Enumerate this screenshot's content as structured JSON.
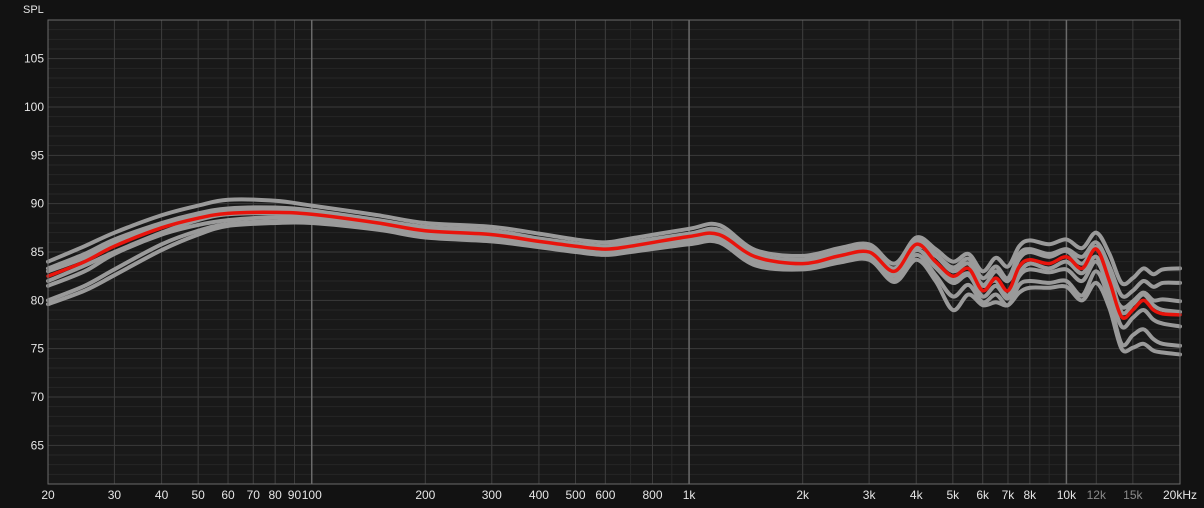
{
  "chart_data": {
    "type": "line",
    "ylabel": "SPL",
    "xunit": "Hz",
    "xscale": "log",
    "xlim": [
      20,
      20000
    ],
    "ylim": [
      61,
      109
    ],
    "grid": true,
    "yticks": [
      65,
      70,
      75,
      80,
      85,
      90,
      95,
      100,
      105
    ],
    "xticks": [
      {
        "v": 20,
        "label": "20",
        "dim": false
      },
      {
        "v": 30,
        "label": "30",
        "dim": false
      },
      {
        "v": 40,
        "label": "40",
        "dim": false
      },
      {
        "v": 50,
        "label": "50",
        "dim": false
      },
      {
        "v": 60,
        "label": "60",
        "dim": false
      },
      {
        "v": 70,
        "label": "70",
        "dim": false
      },
      {
        "v": 80,
        "label": "80",
        "dim": false
      },
      {
        "v": 90,
        "label": "90",
        "dim": false
      },
      {
        "v": 100,
        "label": "100",
        "dim": false
      },
      {
        "v": 200,
        "label": "200",
        "dim": false
      },
      {
        "v": 300,
        "label": "300",
        "dim": false
      },
      {
        "v": 400,
        "label": "400",
        "dim": false
      },
      {
        "v": 500,
        "label": "500",
        "dim": false
      },
      {
        "v": 600,
        "label": "600",
        "dim": false
      },
      {
        "v": 800,
        "label": "800",
        "dim": false
      },
      {
        "v": 1000,
        "label": "1k",
        "dim": false
      },
      {
        "v": 2000,
        "label": "2k",
        "dim": false
      },
      {
        "v": 3000,
        "label": "3k",
        "dim": false
      },
      {
        "v": 4000,
        "label": "4k",
        "dim": false
      },
      {
        "v": 5000,
        "label": "5k",
        "dim": false
      },
      {
        "v": 6000,
        "label": "6k",
        "dim": false
      },
      {
        "v": 7000,
        "label": "7k",
        "dim": false
      },
      {
        "v": 8000,
        "label": "8k",
        "dim": false
      },
      {
        "v": 10000,
        "label": "10k",
        "dim": false
      },
      {
        "v": 12000,
        "label": "12k",
        "dim": true
      },
      {
        "v": 15000,
        "label": "15k",
        "dim": true
      },
      {
        "v": 20000,
        "label": "20kHz",
        "dim": false
      }
    ],
    "x": [
      20,
      25,
      30,
      40,
      50,
      60,
      80,
      100,
      150,
      200,
      300,
      400,
      500,
      600,
      700,
      1000,
      1200,
      1500,
      2000,
      2500,
      3000,
      3500,
      4000,
      4500,
      5000,
      5500,
      6000,
      6500,
      7000,
      7500,
      8000,
      9000,
      10000,
      11000,
      12000,
      13000,
      14000,
      15000,
      16000,
      17000,
      18000,
      20000
    ],
    "series": [
      {
        "color": "#e8140c",
        "y": [
          82.5,
          84.0,
          85.6,
          87.5,
          88.5,
          89.0,
          89.1,
          88.9,
          88.0,
          87.2,
          86.8,
          86.1,
          85.6,
          85.3,
          85.6,
          86.6,
          86.8,
          84.5,
          83.8,
          84.6,
          85.0,
          83.0,
          85.8,
          84.0,
          82.5,
          83.3,
          81.0,
          82.3,
          81.0,
          83.5,
          84.2,
          83.8,
          84.5,
          83.3,
          85.3,
          82.0,
          78.3,
          79.0,
          80.0,
          79.0,
          78.6,
          78.5
        ]
      },
      {
        "color": "#9a9a9a",
        "y": [
          84.0,
          85.6,
          87.0,
          88.8,
          89.8,
          90.4,
          90.3,
          89.8,
          88.8,
          88.0,
          87.6,
          86.9,
          86.3,
          86.0,
          86.4,
          87.4,
          87.8,
          85.2,
          84.6,
          85.4,
          85.8,
          83.8,
          86.5,
          85.3,
          84.0,
          84.8,
          83.0,
          84.4,
          83.5,
          85.6,
          86.2,
          85.8,
          86.3,
          85.4,
          87.0,
          84.8,
          81.8,
          82.3,
          83.3,
          82.7,
          83.2,
          83.3
        ]
      },
      {
        "color": "#9a9a9a",
        "y": [
          83.3,
          84.8,
          86.3,
          88.0,
          89.0,
          89.5,
          89.6,
          89.3,
          88.3,
          87.6,
          87.2,
          86.4,
          85.9,
          85.6,
          86.0,
          86.9,
          87.3,
          84.8,
          84.2,
          85.0,
          85.4,
          83.3,
          86.2,
          84.8,
          83.4,
          84.3,
          82.3,
          83.5,
          82.3,
          84.8,
          85.3,
          84.8,
          85.3,
          84.5,
          86.0,
          83.5,
          80.5,
          81.0,
          82.0,
          81.4,
          81.8,
          81.8
        ]
      },
      {
        "color": "#9a9a9a",
        "y": [
          81.5,
          83.0,
          84.8,
          86.8,
          87.8,
          88.3,
          88.6,
          88.5,
          87.7,
          87.0,
          86.5,
          85.9,
          85.4,
          85.1,
          85.4,
          86.3,
          86.5,
          84.2,
          83.6,
          84.3,
          84.7,
          82.6,
          85.2,
          83.4,
          81.8,
          82.6,
          80.4,
          81.5,
          80.2,
          82.5,
          83.2,
          82.9,
          83.2,
          82.0,
          84.0,
          81.0,
          77.3,
          78.2,
          79.0,
          78.0,
          77.6,
          77.3
        ]
      },
      {
        "color": "#9a9a9a",
        "y": [
          80.0,
          81.5,
          83.2,
          85.8,
          87.2,
          87.9,
          88.2,
          88.2,
          87.4,
          86.7,
          86.3,
          85.7,
          85.2,
          84.9,
          85.2,
          86.0,
          86.2,
          83.8,
          83.4,
          84.1,
          84.4,
          82.2,
          84.7,
          82.6,
          80.4,
          81.6,
          79.8,
          80.6,
          79.5,
          81.6,
          82.0,
          81.8,
          82.0,
          80.5,
          83.0,
          80.0,
          75.5,
          76.4,
          77.0,
          76.0,
          75.5,
          75.3
        ]
      },
      {
        "color": "#9a9a9a",
        "y": [
          79.6,
          81.0,
          82.6,
          85.2,
          86.8,
          87.7,
          88.0,
          88.0,
          87.3,
          86.5,
          86.1,
          85.5,
          85.0,
          84.7,
          85.0,
          85.8,
          86.0,
          83.6,
          83.2,
          83.9,
          84.2,
          81.9,
          84.2,
          82.0,
          79.0,
          80.6,
          79.5,
          79.8,
          79.5,
          80.8,
          81.3,
          81.3,
          81.4,
          80.0,
          81.8,
          79.2,
          75.0,
          75.1,
          75.5,
          74.8,
          74.6,
          74.4
        ]
      },
      {
        "color": "#9a9a9a",
        "y": [
          82.0,
          83.6,
          85.0,
          87.0,
          88.3,
          88.9,
          89.0,
          88.8,
          87.9,
          87.2,
          86.8,
          86.2,
          85.6,
          85.3,
          85.7,
          86.5,
          86.9,
          84.4,
          83.8,
          84.7,
          85.1,
          82.9,
          85.5,
          84.6,
          83.0,
          83.8,
          81.6,
          83.0,
          82.0,
          84.3,
          85.0,
          84.5,
          85.1,
          83.8,
          85.5,
          82.7,
          78.8,
          79.6,
          80.6,
          79.5,
          79.0,
          78.8
        ]
      },
      {
        "color": "#9a9a9a",
        "y": [
          83.0,
          84.4,
          85.9,
          87.8,
          88.8,
          89.3,
          89.4,
          89.1,
          88.1,
          87.4,
          86.9,
          86.3,
          85.8,
          85.5,
          85.8,
          86.8,
          87.1,
          84.7,
          84.0,
          84.9,
          85.2,
          83.2,
          85.9,
          83.9,
          82.2,
          82.8,
          81.5,
          82.0,
          80.5,
          82.8,
          83.8,
          83.3,
          84.0,
          82.8,
          84.5,
          81.5,
          79.3,
          79.9,
          80.8,
          80.0,
          80.1,
          79.9
        ]
      }
    ]
  }
}
